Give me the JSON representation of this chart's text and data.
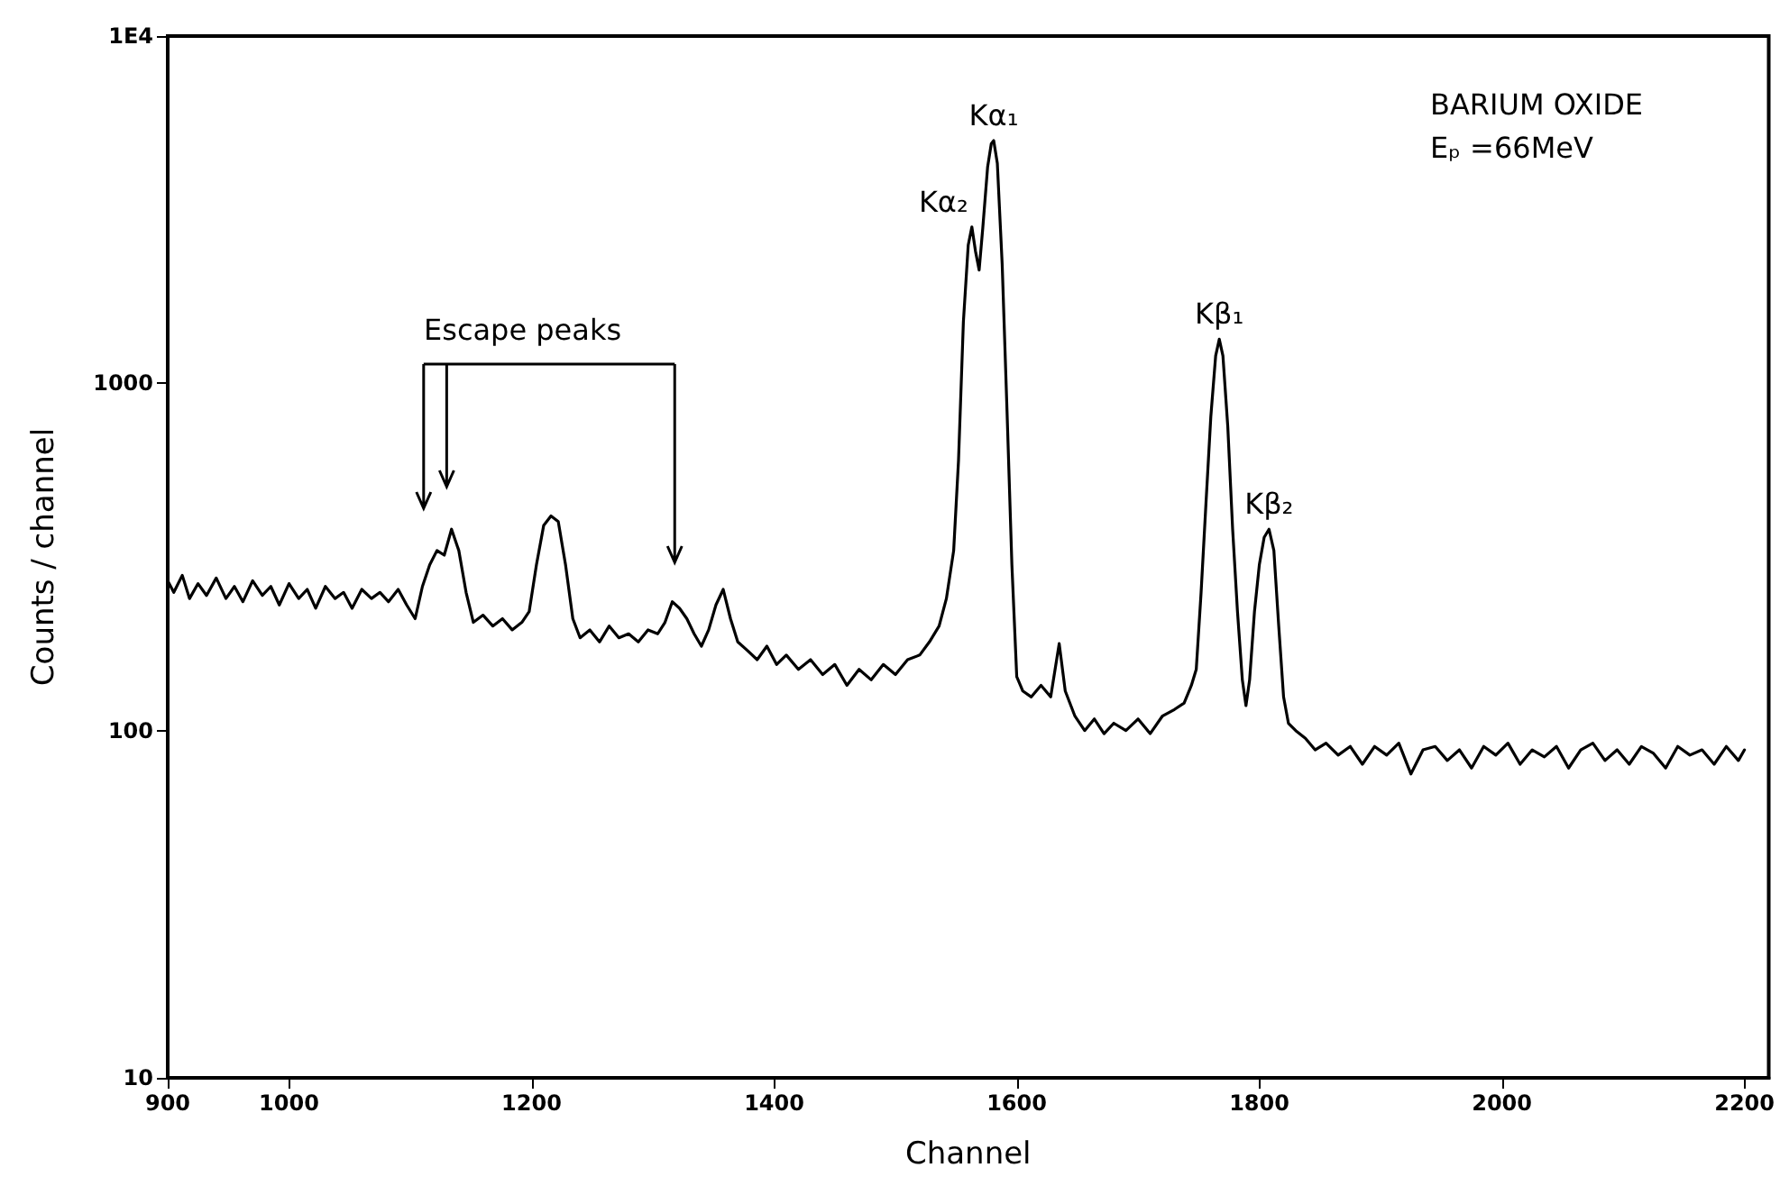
{
  "chart_data": {
    "type": "line",
    "xlabel": "Channel",
    "ylabel": "Counts / channel",
    "x": [
      900,
      905,
      912,
      918,
      925,
      932,
      940,
      948,
      955,
      962,
      970,
      978,
      985,
      992,
      1000,
      1008,
      1015,
      1022,
      1030,
      1038,
      1045,
      1052,
      1060,
      1068,
      1075,
      1082,
      1090,
      1097,
      1104,
      1110,
      1116,
      1122,
      1128,
      1134,
      1140,
      1146,
      1152,
      1160,
      1168,
      1176,
      1184,
      1192,
      1198,
      1204,
      1210,
      1216,
      1222,
      1228,
      1234,
      1240,
      1248,
      1256,
      1264,
      1272,
      1280,
      1288,
      1296,
      1304,
      1310,
      1316,
      1322,
      1328,
      1334,
      1340,
      1346,
      1352,
      1358,
      1364,
      1370,
      1378,
      1386,
      1394,
      1402,
      1410,
      1420,
      1430,
      1440,
      1450,
      1460,
      1470,
      1480,
      1490,
      1500,
      1510,
      1520,
      1528,
      1536,
      1542,
      1548,
      1552,
      1556,
      1560,
      1563,
      1566,
      1569,
      1572,
      1576,
      1579,
      1581,
      1584,
      1588,
      1592,
      1596,
      1600,
      1605,
      1612,
      1620,
      1628,
      1635,
      1640,
      1648,
      1656,
      1664,
      1672,
      1680,
      1690,
      1700,
      1710,
      1720,
      1730,
      1738,
      1744,
      1748,
      1752,
      1756,
      1760,
      1764,
      1767,
      1770,
      1774,
      1778,
      1782,
      1786,
      1789,
      1792,
      1796,
      1800,
      1804,
      1808,
      1812,
      1816,
      1820,
      1824,
      1830,
      1838,
      1846,
      1855,
      1865,
      1875,
      1885,
      1895,
      1905,
      1915,
      1925,
      1935,
      1945,
      1955,
      1965,
      1975,
      1985,
      1995,
      2005,
      2015,
      2025,
      2035,
      2045,
      2055,
      2065,
      2075,
      2085,
      2095,
      2105,
      2115,
      2125,
      2135,
      2145,
      2155,
      2165,
      2175,
      2185,
      2195,
      2200
    ],
    "series": [
      {
        "color": "#000000",
        "values": [
          270,
          250,
          280,
          240,
          265,
          245,
          275,
          240,
          260,
          235,
          270,
          245,
          260,
          230,
          265,
          240,
          255,
          225,
          260,
          240,
          250,
          225,
          255,
          240,
          250,
          235,
          255,
          230,
          210,
          260,
          300,
          330,
          320,
          380,
          330,
          250,
          205,
          215,
          200,
          210,
          195,
          205,
          220,
          300,
          390,
          415,
          400,
          300,
          210,
          185,
          195,
          180,
          200,
          185,
          190,
          180,
          195,
          190,
          205,
          235,
          225,
          210,
          190,
          175,
          195,
          230,
          255,
          210,
          180,
          170,
          160,
          175,
          155,
          165,
          150,
          160,
          145,
          155,
          135,
          150,
          140,
          155,
          145,
          160,
          165,
          180,
          200,
          240,
          330,
          600,
          1500,
          2500,
          2820,
          2400,
          2120,
          2800,
          4200,
          4900,
          5000,
          4300,
          2200,
          830,
          300,
          143,
          130,
          125,
          135,
          125,
          178,
          130,
          110,
          100,
          108,
          98,
          105,
          100,
          108,
          98,
          110,
          115,
          120,
          135,
          150,
          250,
          450,
          800,
          1200,
          1340,
          1200,
          750,
          380,
          220,
          140,
          118,
          140,
          220,
          300,
          360,
          380,
          330,
          200,
          125,
          105,
          100,
          95,
          88,
          92,
          85,
          90,
          80,
          90,
          85,
          92,
          75,
          88,
          90,
          82,
          88,
          78,
          90,
          85,
          92,
          80,
          88,
          84,
          90,
          78,
          88,
          92,
          82,
          88,
          80,
          90,
          86,
          78,
          90,
          85,
          88,
          80,
          90,
          82,
          88
        ]
      }
    ],
    "xlim": [
      900,
      2220
    ],
    "xticks": [
      900,
      1000,
      1200,
      1400,
      1600,
      1800,
      2000,
      2200
    ],
    "ylim": [
      10,
      10000
    ],
    "yticks": [
      10,
      100,
      1000,
      {
        "value": 10000,
        "label": "1E4"
      }
    ],
    "log": "y",
    "grid": false,
    "marker": "none",
    "line_style": "solid",
    "annotations": [
      "Escape peaks",
      "BARIUM OXIDE",
      "Eₚ =66MeV",
      {
        "text": "Kα₂",
        "x": 1563,
        "y": 2820
      },
      {
        "text": "Kα₁",
        "x": 1581,
        "y": 5000
      },
      {
        "text": "Kβ₁",
        "x": 1767,
        "y": 1340
      },
      {
        "text": "Kβ₂",
        "x": 1808,
        "y": 380
      }
    ]
  }
}
